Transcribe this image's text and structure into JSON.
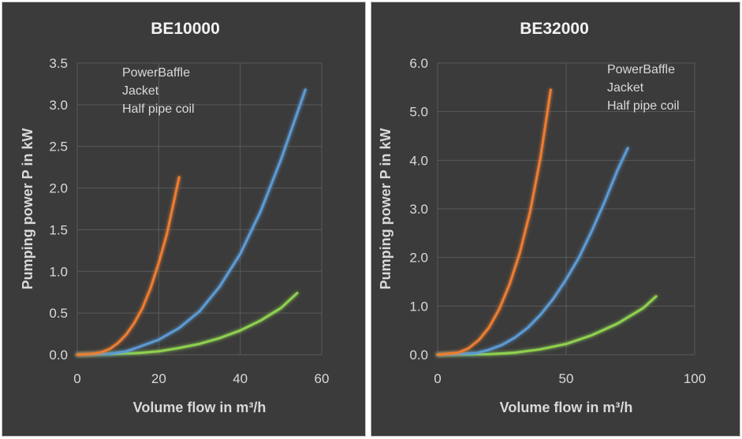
{
  "colors": {
    "background": "#3b3b3b",
    "grid": "#5a5a5a",
    "text": "#d9d9d9",
    "powerbaffle": "#8fd14f",
    "jacket": "#5b9bd5",
    "halfpipe": "#ed7d31"
  },
  "chart_data": [
    {
      "type": "line",
      "title": "BE10000",
      "xlabel": "Volume flow in m³/h",
      "ylabel": "Pumping power P in kW",
      "xlim": [
        0,
        60
      ],
      "ylim": [
        0,
        3.5
      ],
      "xticks": [
        0,
        20,
        40,
        60
      ],
      "yticks": [
        0,
        0.5,
        1.0,
        1.5,
        2.0,
        2.5,
        3.0,
        3.5
      ],
      "xtick_labels": [
        "0",
        "20",
        "40",
        "60"
      ],
      "ytick_labels": [
        "0.0",
        "0.5",
        "1.0",
        "1.5",
        "2.0",
        "2.5",
        "3.0",
        "3.5"
      ],
      "legend_position": "top-left",
      "series": [
        {
          "name": "PowerBaffle",
          "color": "#8fd14f",
          "x": [
            0,
            10,
            15,
            20,
            25,
            30,
            35,
            40,
            45,
            50,
            54
          ],
          "y": [
            0,
            0.01,
            0.02,
            0.04,
            0.08,
            0.13,
            0.2,
            0.29,
            0.41,
            0.56,
            0.74
          ]
        },
        {
          "name": "Jacket",
          "color": "#5b9bd5",
          "x": [
            0,
            8,
            12,
            15,
            20,
            25,
            30,
            35,
            40,
            45,
            50,
            56
          ],
          "y": [
            0,
            0.01,
            0.04,
            0.09,
            0.18,
            0.32,
            0.52,
            0.82,
            1.21,
            1.72,
            2.34,
            3.18
          ]
        },
        {
          "name": "Half pipe coil",
          "color": "#ed7d31",
          "x": [
            0,
            4,
            6,
            8,
            10,
            12,
            14,
            16,
            18,
            20,
            22,
            25
          ],
          "y": [
            0,
            0.01,
            0.03,
            0.07,
            0.14,
            0.24,
            0.38,
            0.56,
            0.8,
            1.1,
            1.45,
            2.13
          ]
        }
      ]
    },
    {
      "type": "line",
      "title": "BE32000",
      "xlabel": "Volume flow in m³/h",
      "ylabel": "Pumping power P in kW",
      "xlim": [
        0,
        100
      ],
      "ylim": [
        0,
        6.0
      ],
      "xticks": [
        0,
        50,
        100
      ],
      "yticks": [
        0,
        1,
        2,
        3,
        4,
        5,
        6
      ],
      "xtick_labels": [
        "0",
        "50",
        "100"
      ],
      "ytick_labels": [
        "0.0",
        "1.0",
        "2.0",
        "3.0",
        "4.0",
        "5.0",
        "6.0"
      ],
      "legend_position": "top-right",
      "series": [
        {
          "name": "PowerBaffle",
          "color": "#8fd14f",
          "x": [
            0,
            20,
            30,
            40,
            50,
            60,
            70,
            80,
            85
          ],
          "y": [
            0,
            0.01,
            0.04,
            0.11,
            0.22,
            0.4,
            0.64,
            0.96,
            1.2
          ]
        },
        {
          "name": "Jacket",
          "color": "#5b9bd5",
          "x": [
            0,
            15,
            20,
            25,
            30,
            35,
            40,
            45,
            50,
            55,
            60,
            65,
            70,
            74
          ],
          "y": [
            0,
            0.03,
            0.1,
            0.2,
            0.35,
            0.55,
            0.82,
            1.15,
            1.55,
            2.0,
            2.55,
            3.15,
            3.8,
            4.25
          ]
        },
        {
          "name": "Half pipe coil",
          "color": "#ed7d31",
          "x": [
            0,
            8,
            12,
            16,
            20,
            24,
            28,
            32,
            36,
            40,
            44
          ],
          "y": [
            0,
            0.04,
            0.13,
            0.3,
            0.56,
            0.94,
            1.45,
            2.1,
            2.95,
            4.05,
            5.45
          ]
        }
      ]
    }
  ]
}
